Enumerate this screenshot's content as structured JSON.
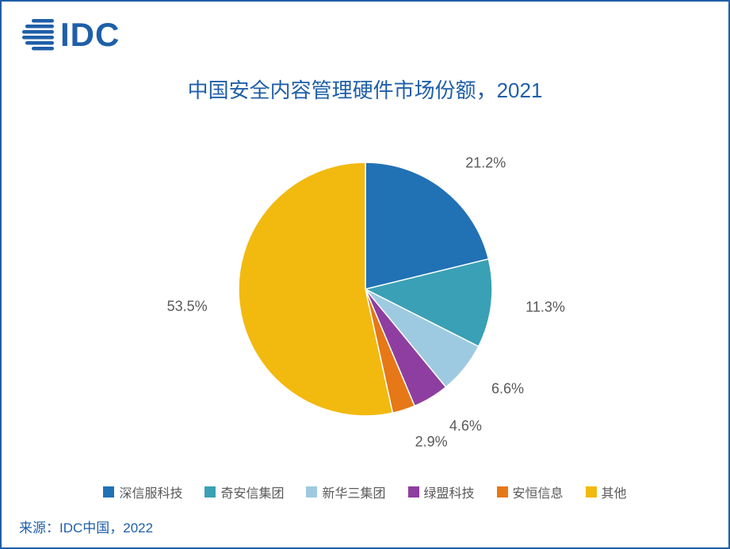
{
  "logo": {
    "text": "IDC",
    "color": "#1f5fa8"
  },
  "title": "中国安全内容管理硬件市场份额，2021",
  "title_color": "#1f5fa8",
  "title_fontsize": 26,
  "source": "来源：IDC中国，2022",
  "border_color": "#1f5fa8",
  "background_color": "#ffffff",
  "chart": {
    "type": "pie",
    "start_angle_deg": -90,
    "radius": 160,
    "slices": [
      {
        "label": "深信服科技",
        "value": 21.2,
        "color": "#2171b5",
        "display": "21.2%"
      },
      {
        "label": "奇安信集团",
        "value": 11.3,
        "color": "#3aa0b5",
        "display": "11.3%"
      },
      {
        "label": "新华三集团",
        "value": 6.6,
        "color": "#9ecae1",
        "display": "6.6%"
      },
      {
        "label": "绿盟科技",
        "value": 4.6,
        "color": "#8e3ea0",
        "display": "4.6%"
      },
      {
        "label": "安恒信息",
        "value": 2.9,
        "color": "#e67817",
        "display": "2.9%"
      },
      {
        "label": "其他",
        "value": 53.5,
        "color": "#f2b90f",
        "display": "53.5%"
      }
    ],
    "label_fontsize": 18,
    "label_color": "#595959"
  },
  "legend": {
    "marker_size": 14,
    "fontsize": 16,
    "color": "#595959"
  }
}
